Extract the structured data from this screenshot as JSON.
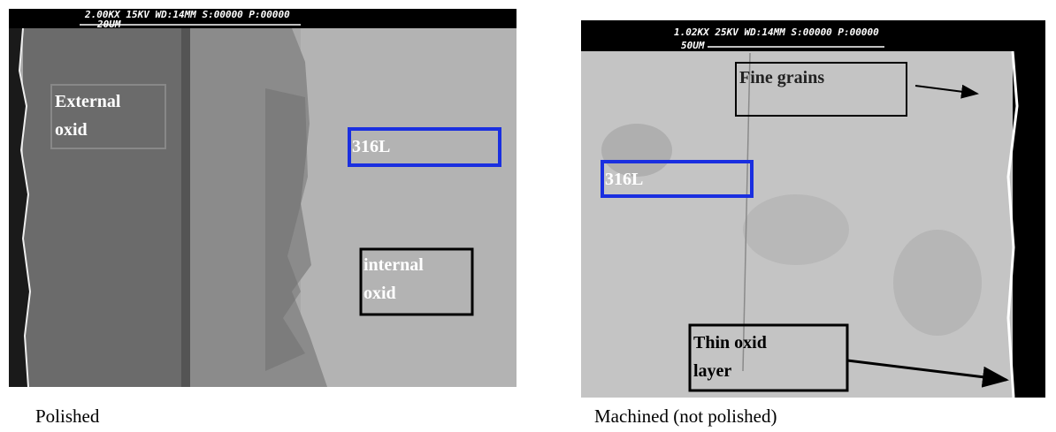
{
  "panels": [
    {
      "header": {
        "line1": "2.00KX   15KV WD:14MM   S:00000 P:00000",
        "line2": "20UM"
      },
      "labels": [
        {
          "lines": [
            "External",
            "oxid"
          ]
        },
        {
          "lines": [
            "316L"
          ]
        },
        {
          "lines": [
            "internal",
            "oxid"
          ]
        }
      ],
      "caption": "Polished"
    },
    {
      "header": {
        "line1": "1.02KX   25KV WD:14MM   S:00000 P:00000",
        "line2": "50UM"
      },
      "labels": [
        {
          "lines": [
            "Fine grains"
          ]
        },
        {
          "lines": [
            "316L"
          ]
        },
        {
          "lines": [
            "Thin oxid",
            "layer"
          ]
        }
      ],
      "caption": "Machined (not polished)"
    }
  ]
}
